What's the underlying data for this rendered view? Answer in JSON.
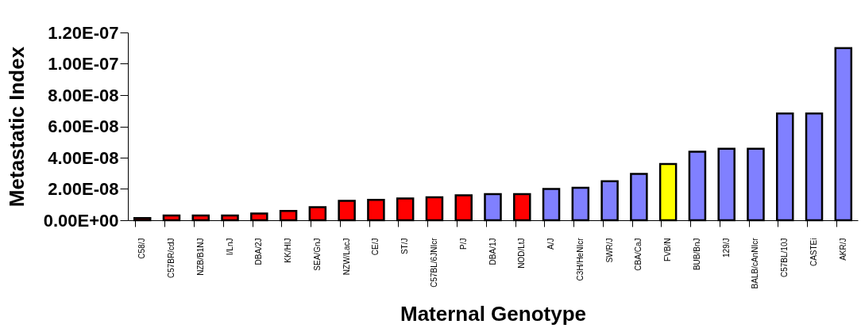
{
  "chart_data": {
    "type": "bar",
    "xlabel": "Maternal Genotype",
    "ylabel": "Metastatic Index",
    "categories": [
      "C58/J",
      "C57BR/cdJ",
      "NZB/B1NJ",
      "I/LnJ",
      "DBA/2J",
      "KK/HIJ",
      "SEA/GnJ",
      "NZW/LacJ",
      "CE/J",
      "ST/J",
      "C57BL/6JNIcr",
      "P/J",
      "DBA/1J",
      "NOD/LtJ",
      "A/J",
      "C3H/HeNIcr",
      "SWR/J",
      "CBA/CaJ",
      "FVB/N",
      "BUB/BnJ",
      "129/J",
      "BALB/cAnNIcr",
      "C57BL/10J",
      "CASTEi",
      "AKR/J"
    ],
    "values": [
      1.4e-09,
      3e-09,
      3e-09,
      3e-09,
      4.3e-09,
      6e-09,
      8.4e-09,
      1.24e-08,
      1.31e-08,
      1.39e-08,
      1.47e-08,
      1.6e-08,
      1.67e-08,
      1.67e-08,
      2e-08,
      2.08e-08,
      2.49e-08,
      2.96e-08,
      3.59e-08,
      4.38e-08,
      4.57e-08,
      4.57e-08,
      6.82e-08,
      6.82e-08,
      1.1e-07
    ],
    "colors": [
      "#ff0000",
      "#ff0000",
      "#ff0000",
      "#ff0000",
      "#ff0000",
      "#ff0000",
      "#ff0000",
      "#ff0000",
      "#ff0000",
      "#ff0000",
      "#ff0000",
      "#ff0000",
      "#8080ff",
      "#ff0000",
      "#8080ff",
      "#8080ff",
      "#8080ff",
      "#8080ff",
      "#ffff00",
      "#8080ff",
      "#8080ff",
      "#8080ff",
      "#8080ff",
      "#8080ff",
      "#8080ff"
    ],
    "ylim": [
      0,
      1.2e-07
    ],
    "yticks": [
      {
        "value": 0,
        "label": "0.00E+00"
      },
      {
        "value": 2e-08,
        "label": "2.00E-08"
      },
      {
        "value": 4e-08,
        "label": "4.00E-08"
      },
      {
        "value": 6e-08,
        "label": "6.00E-08"
      },
      {
        "value": 8e-08,
        "label": "8.00E-08"
      },
      {
        "value": 1e-07,
        "label": "1.00E-07"
      },
      {
        "value": 1.2e-07,
        "label": "1.20E-07"
      }
    ],
    "grid": false,
    "legend": false
  }
}
